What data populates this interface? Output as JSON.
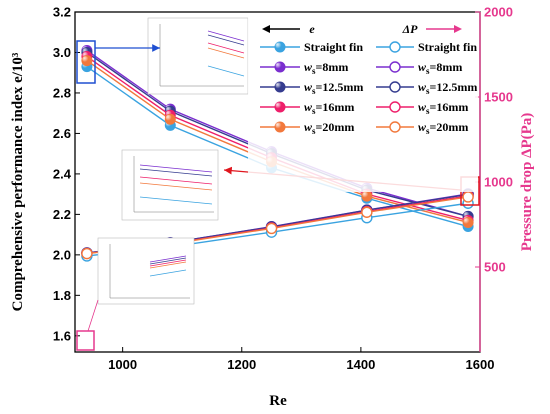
{
  "chart_data": {
    "type": "line",
    "xlabel": "Re",
    "ylabel": "Comprehensive performance index e/10³",
    "ylabel_right": "Pressure drop ΔP(Pa)",
    "xlim": [
      920,
      1600
    ],
    "ylim": [
      1.52,
      3.2
    ],
    "ylim_right": [
      0,
      2000
    ],
    "xticks": [
      "1000",
      "1200",
      "1400",
      "1600"
    ],
    "yticks": [
      "1.6",
      "1.8",
      "2.0",
      "2.2",
      "2.4",
      "2.6",
      "2.8",
      "3.0",
      "3.2"
    ],
    "yticks_right": [
      "500",
      "1000",
      "1500",
      "2000"
    ],
    "x": [
      940,
      1080,
      1250,
      1410,
      1580
    ],
    "legend_headers": {
      "left": "e",
      "right": "ΔP"
    },
    "series_e": [
      {
        "name": "Straight fin",
        "color": "#3aa3e0",
        "values": [
          2.93,
          2.64,
          2.43,
          2.28,
          2.14
        ]
      },
      {
        "name": "ws=8mm",
        "color": "#7a2ecf",
        "values": [
          3.01,
          2.72,
          2.51,
          2.33,
          2.19
        ]
      },
      {
        "name": "ws=12.5mm",
        "color": "#353c8f",
        "values": [
          3.0,
          2.71,
          2.5,
          2.32,
          2.19
        ]
      },
      {
        "name": "ws=16mm",
        "color": "#ee1f6a",
        "values": [
          2.98,
          2.69,
          2.48,
          2.3,
          2.17
        ]
      },
      {
        "name": "ws=20mm",
        "color": "#f2783c",
        "values": [
          2.96,
          2.67,
          2.46,
          2.29,
          2.16
        ]
      }
    ],
    "series_dp": [
      {
        "name": "Straight fin",
        "color": "#3aa3e0",
        "values": [
          565,
          618,
          705,
          790,
          875
        ]
      },
      {
        "name": "ws=8mm",
        "color": "#7a2ecf",
        "values": [
          583,
          642,
          737,
          835,
          930
        ]
      },
      {
        "name": "ws=12.5mm",
        "color": "#353c8f",
        "values": [
          583,
          642,
          736,
          834,
          927
        ]
      },
      {
        "name": "ws=16mm",
        "color": "#ee1f6a",
        "values": [
          580,
          637,
          730,
          826,
          918
        ]
      },
      {
        "name": "ws=20mm",
        "color": "#f2783c",
        "values": [
          579,
          635,
          727,
          822,
          912
        ]
      }
    ]
  }
}
